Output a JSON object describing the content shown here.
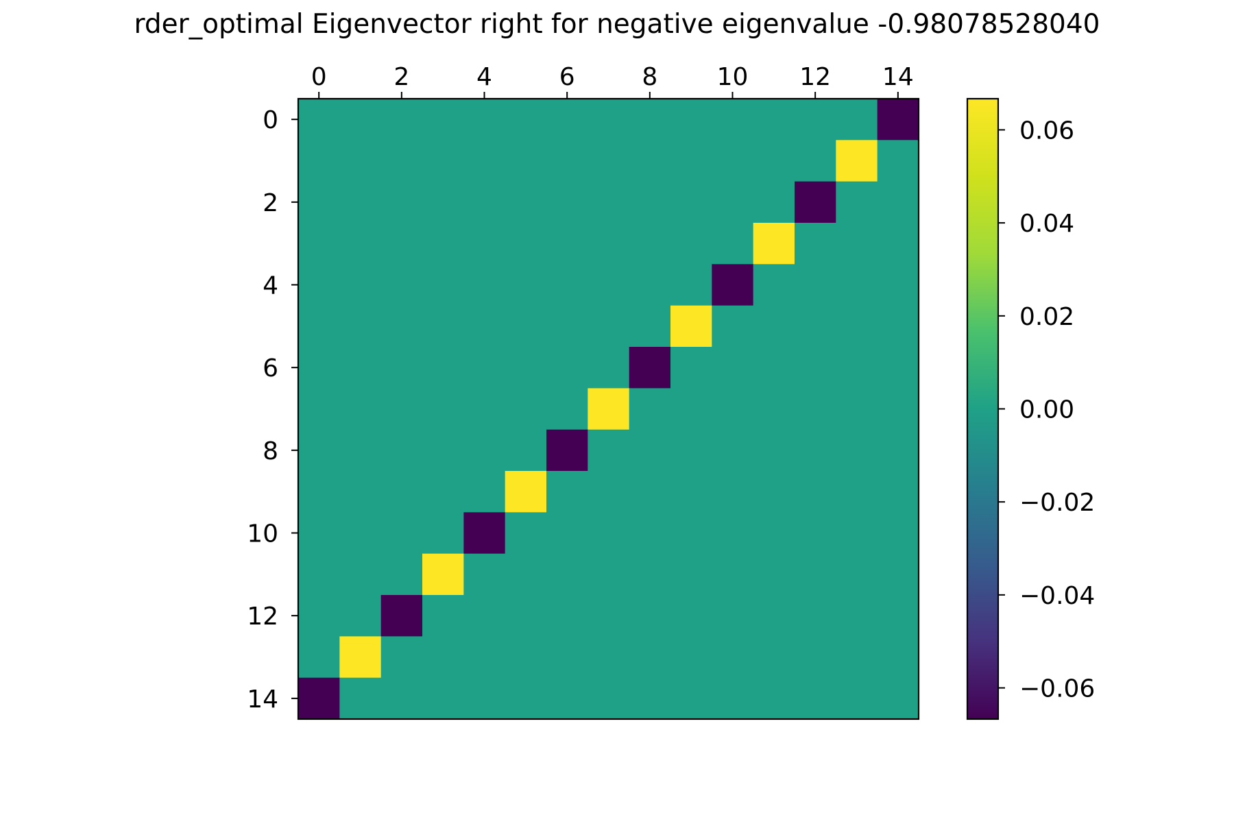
{
  "chart_data": {
    "type": "heatmap",
    "title": "rder_optimal Eigenvector right for negative eigenvalue -0.98078528040",
    "xlabel": "",
    "ylabel": "",
    "x_ticks": [
      "0",
      "2",
      "4",
      "6",
      "8",
      "10",
      "12",
      "14"
    ],
    "y_ticks": [
      "0",
      "2",
      "4",
      "6",
      "8",
      "10",
      "12",
      "14"
    ],
    "x_tick_position": "top",
    "grid": false,
    "colormap": "viridis",
    "colorbar": {
      "range": [
        -0.0667,
        0.0667
      ],
      "ticks": [
        {
          "value": 0.06,
          "label": "0.06"
        },
        {
          "value": 0.04,
          "label": "0.04"
        },
        {
          "value": 0.02,
          "label": "0.02"
        },
        {
          "value": 0.0,
          "label": "0.00"
        },
        {
          "value": -0.02,
          "label": "−0.02"
        },
        {
          "value": -0.04,
          "label": "−0.04"
        },
        {
          "value": -0.06,
          "label": "−0.06"
        }
      ]
    },
    "rows": 15,
    "cols": 15,
    "values": [
      [
        0,
        0,
        0,
        0,
        0,
        0,
        0,
        0,
        0,
        0,
        0,
        0,
        0,
        0,
        -0.0667
      ],
      [
        0,
        0,
        0,
        0,
        0,
        0,
        0,
        0,
        0,
        0,
        0,
        0,
        0,
        0.0667,
        0
      ],
      [
        0,
        0,
        0,
        0,
        0,
        0,
        0,
        0,
        0,
        0,
        0,
        0,
        -0.0667,
        0,
        0
      ],
      [
        0,
        0,
        0,
        0,
        0,
        0,
        0,
        0,
        0,
        0,
        0,
        0.0667,
        0,
        0,
        0
      ],
      [
        0,
        0,
        0,
        0,
        0,
        0,
        0,
        0,
        0,
        0,
        -0.0667,
        0,
        0,
        0,
        0
      ],
      [
        0,
        0,
        0,
        0,
        0,
        0,
        0,
        0,
        0,
        0.0667,
        0,
        0,
        0,
        0,
        0
      ],
      [
        0,
        0,
        0,
        0,
        0,
        0,
        0,
        0,
        -0.0667,
        0,
        0,
        0,
        0,
        0,
        0
      ],
      [
        0,
        0,
        0,
        0,
        0,
        0,
        0,
        0.0667,
        0,
        0,
        0,
        0,
        0,
        0,
        0
      ],
      [
        0,
        0,
        0,
        0,
        0,
        0,
        -0.0667,
        0,
        0,
        0,
        0,
        0,
        0,
        0,
        0
      ],
      [
        0,
        0,
        0,
        0,
        0,
        0.0667,
        0,
        0,
        0,
        0,
        0,
        0,
        0,
        0,
        0
      ],
      [
        0,
        0,
        0,
        0,
        -0.0667,
        0,
        0,
        0,
        0,
        0,
        0,
        0,
        0,
        0,
        0
      ],
      [
        0,
        0,
        0,
        0.0667,
        0,
        0,
        0,
        0,
        0,
        0,
        0,
        0,
        0,
        0,
        0
      ],
      [
        0,
        0,
        -0.0667,
        0,
        0,
        0,
        0,
        0,
        0,
        0,
        0,
        0,
        0,
        0,
        0
      ],
      [
        0,
        0.0667,
        0,
        0,
        0,
        0,
        0,
        0,
        0,
        0,
        0,
        0,
        0,
        0,
        0
      ],
      [
        -0.0667,
        0,
        0,
        0,
        0,
        0,
        0,
        0,
        0,
        0,
        0,
        0,
        0,
        0,
        0
      ]
    ]
  }
}
